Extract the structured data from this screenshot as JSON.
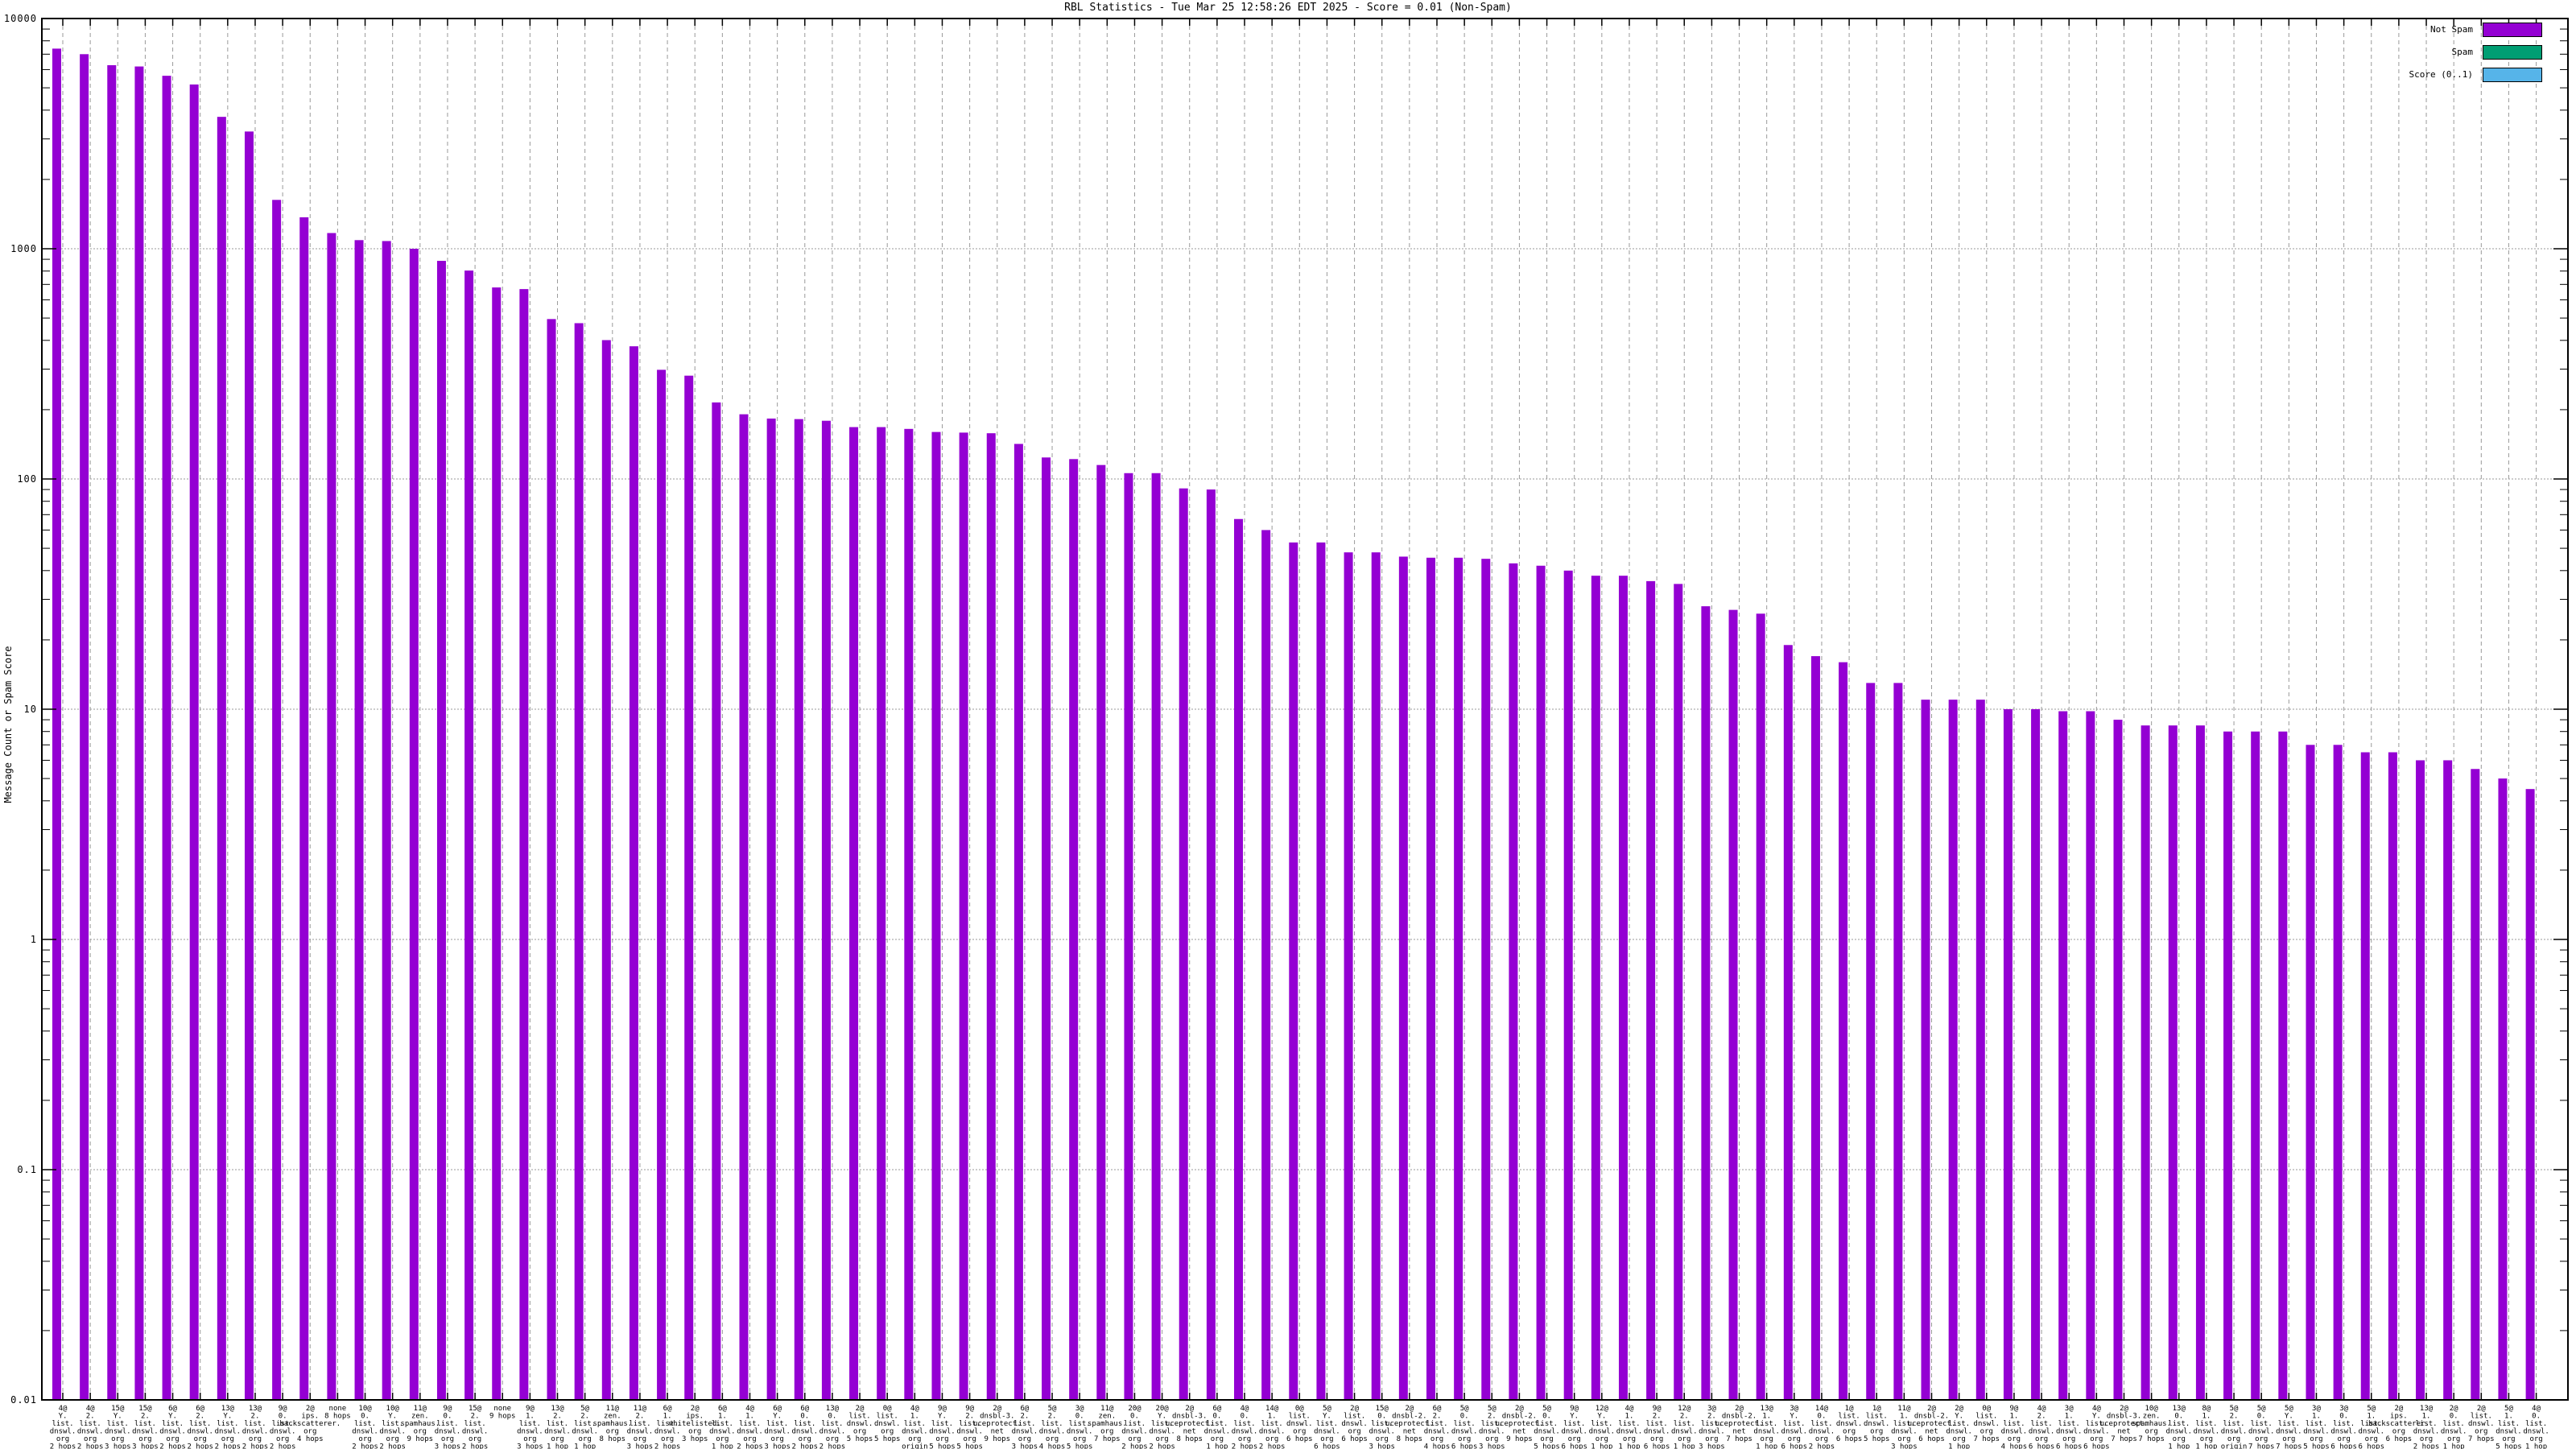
{
  "chart_data": {
    "type": "bar",
    "title": "RBL Statistics - Tue Mar 25 12:58:26 EDT 2025 - Score = 0.01 (Non-Spam)",
    "ylabel": "Message Count or Spam Score",
    "y_scale": "log10",
    "ylim": [
      0.01,
      10000
    ],
    "yticks": [
      "10000",
      "1000",
      "100",
      "10",
      "1",
      "0.1",
      "0.01"
    ],
    "grid": "major-dotted-horizontal, dashed-vertical-per-bar",
    "legend_position": "top-right-inside",
    "legend": [
      {
        "label": "Not Spam",
        "color": "#9400d3"
      },
      {
        "label": "Spam",
        "color": "#009e73"
      },
      {
        "label": "Score (0..1)",
        "color": "#56b4e9"
      }
    ],
    "series_shown": "Not Spam",
    "bar_color": "#9400d3",
    "bars": [
      {
        "v": 7400,
        "l": [
          "4@",
          "Y.",
          "list.",
          "dnswl.",
          "org",
          "2 hops"
        ]
      },
      {
        "v": 7000,
        "l": [
          "4@",
          "2.",
          "list.",
          "dnswl.",
          "org",
          "2 hops"
        ]
      },
      {
        "v": 6270,
        "l": [
          "15@",
          "Y.",
          "list.",
          "dnswl.",
          "org",
          "3 hops"
        ]
      },
      {
        "v": 6190,
        "l": [
          "15@",
          "2.",
          "list.",
          "dnswl.",
          "org",
          "3 hops"
        ]
      },
      {
        "v": 5640,
        "l": [
          "6@",
          "Y.",
          "list.",
          "dnswl.",
          "org",
          "2 hops"
        ]
      },
      {
        "v": 5170,
        "l": [
          "6@",
          "2.",
          "list.",
          "dnswl.",
          "org",
          "2 hops"
        ]
      },
      {
        "v": 3740,
        "l": [
          "13@",
          "Y.",
          "list.",
          "dnswl.",
          "org",
          "2 hops"
        ]
      },
      {
        "v": 3230,
        "l": [
          "13@",
          "2.",
          "list.",
          "dnswl.",
          "org",
          "2 hops"
        ]
      },
      {
        "v": 1630,
        "l": [
          "9@",
          "0.",
          "list.",
          "dnswl.",
          "org",
          "2 hops"
        ]
      },
      {
        "v": 1370,
        "l": [
          "2@",
          "ips.",
          "backscatterer.",
          "org",
          "4 hops"
        ]
      },
      {
        "v": 1170,
        "l": [
          "none",
          "8 hops"
        ]
      },
      {
        "v": 1090,
        "l": [
          "10@",
          "0.",
          "list.",
          "dnswl.",
          "org",
          "2 hops"
        ]
      },
      {
        "v": 1080,
        "l": [
          "10@",
          "Y.",
          "list.",
          "dnswl.",
          "org",
          "2 hops"
        ]
      },
      {
        "v": 1000,
        "l": [
          "11@",
          "zen.",
          "spamhaus.",
          "org",
          "9 hops"
        ]
      },
      {
        "v": 886,
        "l": [
          "9@",
          "0.",
          "list.",
          "dnswl.",
          "org",
          "3 hops"
        ]
      },
      {
        "v": 804,
        "l": [
          "15@",
          "2.",
          "list.",
          "dnswl.",
          "org",
          "2 hops"
        ]
      },
      {
        "v": 679,
        "l": [
          "none",
          "9 hops"
        ]
      },
      {
        "v": 668,
        "l": [
          "9@",
          "1.",
          "list.",
          "dnswl.",
          "org",
          "3 hops"
        ]
      },
      {
        "v": 495,
        "l": [
          "13@",
          "2.",
          "list.",
          "dnswl.",
          "org",
          "1 hop"
        ]
      },
      {
        "v": 475,
        "l": [
          "5@",
          "2.",
          "list.",
          "dnswl.",
          "org",
          "1 hop"
        ]
      },
      {
        "v": 401,
        "l": [
          "11@",
          "zen.",
          "spamhaus.",
          "org",
          "8 hops"
        ]
      },
      {
        "v": 377,
        "l": [
          "11@",
          "2.",
          "list.",
          "dnswl.",
          "org",
          "3 hops"
        ]
      },
      {
        "v": 298,
        "l": [
          "6@",
          "1.",
          "list.",
          "dnswl.",
          "org",
          "2 hops"
        ]
      },
      {
        "v": 281,
        "l": [
          "2@",
          "ips.",
          "whitelisted.",
          "org",
          "3 hops"
        ]
      },
      {
        "v": 215,
        "l": [
          "6@",
          "1.",
          "list.",
          "dnswl.",
          "org",
          "1 hop"
        ]
      },
      {
        "v": 191,
        "l": [
          "4@",
          "1.",
          "list.",
          "dnswl.",
          "org",
          "2 hops"
        ]
      },
      {
        "v": 183,
        "l": [
          "6@",
          "Y.",
          "list.",
          "dnswl.",
          "org",
          "3 hops"
        ]
      },
      {
        "v": 182,
        "l": [
          "6@",
          "0.",
          "list.",
          "dnswl.",
          "org",
          "2 hops"
        ]
      },
      {
        "v": 179,
        "l": [
          "13@",
          "0.",
          "list.",
          "dnswl.",
          "org",
          "2 hops"
        ]
      },
      {
        "v": 168,
        "l": [
          "2@",
          "list.",
          "dnswl.",
          "org",
          "5 hops"
        ]
      },
      {
        "v": 168,
        "l": [
          "0@",
          "list.",
          "dnswl.",
          "org",
          "5 hops"
        ]
      },
      {
        "v": 165,
        "l": [
          "4@",
          "1.",
          "list.",
          "dnswl.",
          "org",
          "origin"
        ]
      },
      {
        "v": 160,
        "l": [
          "9@",
          "Y.",
          "list.",
          "dnswl.",
          "org",
          "5 hops"
        ]
      },
      {
        "v": 159,
        "l": [
          "9@",
          "2.",
          "list.",
          "dnswl.",
          "org",
          "5 hops"
        ]
      },
      {
        "v": 158,
        "l": [
          "2@",
          "dnsbl-3.",
          "uceprotect.",
          "net",
          "9 hops"
        ]
      },
      {
        "v": 142,
        "l": [
          "6@",
          "2.",
          "list.",
          "dnswl.",
          "org",
          "3 hops"
        ]
      },
      {
        "v": 124,
        "l": [
          "5@",
          "2.",
          "list.",
          "dnswl.",
          "org",
          "4 hops"
        ]
      },
      {
        "v": 122,
        "l": [
          "3@",
          "0.",
          "list.",
          "dnswl.",
          "org",
          "5 hops"
        ]
      },
      {
        "v": 115,
        "l": [
          "11@",
          "zen.",
          "spamhaus.",
          "org",
          "7 hops"
        ]
      },
      {
        "v": 106,
        "l": [
          "20@",
          "0.",
          "list.",
          "dnswl.",
          "org",
          "2 hops"
        ]
      },
      {
        "v": 106,
        "l": [
          "20@",
          "Y.",
          "list.",
          "dnswl.",
          "org",
          "2 hops"
        ]
      },
      {
        "v": 91,
        "l": [
          "2@",
          "dnsbl-3.",
          "uceprotect.",
          "net",
          "8 hops"
        ]
      },
      {
        "v": 90,
        "l": [
          "6@",
          "0.",
          "list.",
          "dnswl.",
          "org",
          "1 hop"
        ]
      },
      {
        "v": 67,
        "l": [
          "4@",
          "0.",
          "list.",
          "dnswl.",
          "org",
          "2 hops"
        ]
      },
      {
        "v": 60,
        "l": [
          "14@",
          "1.",
          "list.",
          "dnswl.",
          "org",
          "2 hops"
        ]
      },
      {
        "v": 53,
        "l": [
          "0@",
          "list.",
          "dnswl.",
          "org",
          "6 hops"
        ]
      },
      {
        "v": 53,
        "l": [
          "5@",
          "Y.",
          "list.",
          "dnswl.",
          "org",
          "6 hops"
        ]
      },
      {
        "v": 48,
        "l": [
          "2@",
          "list.",
          "dnswl.",
          "org",
          "6 hops"
        ]
      },
      {
        "v": 48,
        "l": [
          "15@",
          "0.",
          "list.",
          "dnswl.",
          "org",
          "3 hops"
        ]
      },
      {
        "v": 46,
        "l": [
          "2@",
          "dnsbl-2.",
          "uceprotect.",
          "net",
          "8 hops"
        ]
      },
      {
        "v": 45.5,
        "l": [
          "6@",
          "2.",
          "list.",
          "dnswl.",
          "org",
          "4 hops"
        ]
      },
      {
        "v": 45.5,
        "l": [
          "5@",
          "0.",
          "list.",
          "dnswl.",
          "org",
          "6 hops"
        ]
      },
      {
        "v": 45,
        "l": [
          "5@",
          "2.",
          "list.",
          "dnswl.",
          "org",
          "3 hops"
        ]
      },
      {
        "v": 43,
        "l": [
          "2@",
          "dnsbl-2.",
          "uceprotect.",
          "net",
          "9 hops"
        ]
      },
      {
        "v": 42,
        "l": [
          "5@",
          "0.",
          "list.",
          "dnswl.",
          "org",
          "5 hops"
        ]
      },
      {
        "v": 40,
        "l": [
          "9@",
          "Y.",
          "list.",
          "dnswl.",
          "org",
          "6 hops"
        ]
      },
      {
        "v": 38,
        "l": [
          "12@",
          "Y.",
          "list.",
          "dnswl.",
          "org",
          "1 hop"
        ]
      },
      {
        "v": 38,
        "l": [
          "4@",
          "1.",
          "list.",
          "dnswl.",
          "org",
          "1 hop"
        ]
      },
      {
        "v": 36,
        "l": [
          "9@",
          "2.",
          "list.",
          "dnswl.",
          "org",
          "6 hops"
        ]
      },
      {
        "v": 35,
        "l": [
          "12@",
          "2.",
          "list.",
          "dnswl.",
          "org",
          "1 hop"
        ]
      },
      {
        "v": 28,
        "l": [
          "3@",
          "2.",
          "list.",
          "dnswl.",
          "org",
          "3 hops"
        ]
      },
      {
        "v": 27,
        "l": [
          "2@",
          "dnsbl-2.",
          "uceprotect.",
          "net",
          "7 hops"
        ]
      },
      {
        "v": 26,
        "l": [
          "13@",
          "1.",
          "list.",
          "dnswl.",
          "org",
          "1 hop"
        ]
      },
      {
        "v": 19,
        "l": [
          "3@",
          "Y.",
          "list.",
          "dnswl.",
          "org",
          "6 hops"
        ]
      },
      {
        "v": 17,
        "l": [
          "14@",
          "0.",
          "list.",
          "dnswl.",
          "org",
          "2 hops"
        ]
      },
      {
        "v": 16,
        "l": [
          "1@",
          "list.",
          "dnswl.",
          "org",
          "6 hops"
        ]
      },
      {
        "v": 13,
        "l": [
          "1@",
          "list.",
          "dnswl.",
          "org",
          "5 hops"
        ]
      },
      {
        "v": 13,
        "l": [
          "11@",
          "1.",
          "list.",
          "dnswl.",
          "org",
          "3 hops"
        ]
      },
      {
        "v": 11,
        "l": [
          "2@",
          "dnsbl-2.",
          "uceprotect.",
          "net",
          "6 hops"
        ]
      },
      {
        "v": 11,
        "l": [
          "2@",
          "Y.",
          "list.",
          "dnswl.",
          "org",
          "1 hop"
        ]
      },
      {
        "v": 11,
        "l": [
          "0@",
          "list.",
          "dnswl.",
          "org",
          "7 hops"
        ]
      },
      {
        "v": 10,
        "l": [
          "9@",
          "1.",
          "list.",
          "dnswl.",
          "org",
          "4 hops"
        ]
      },
      {
        "v": 10,
        "l": [
          "4@",
          "2.",
          "list.",
          "dnswl.",
          "org",
          "6 hops"
        ]
      },
      {
        "v": 9.8,
        "l": [
          "3@",
          "1.",
          "list.",
          "dnswl.",
          "org",
          "6 hops"
        ]
      },
      {
        "v": 9.8,
        "l": [
          "4@",
          "Y.",
          "list.",
          "dnswl.",
          "org",
          "6 hops"
        ]
      },
      {
        "v": 9,
        "l": [
          "2@",
          "dnsbl-3.",
          "uceprotect.",
          "net",
          "7 hops"
        ]
      },
      {
        "v": 8.5,
        "l": [
          "10@",
          "zen.",
          "spamhaus.",
          "org",
          "7 hops"
        ]
      },
      {
        "v": 8.5,
        "l": [
          "13@",
          "0.",
          "list.",
          "dnswl.",
          "org",
          "1 hop"
        ]
      },
      {
        "v": 8.5,
        "l": [
          "8@",
          "1.",
          "list.",
          "dnswl.",
          "org",
          "1 hop"
        ]
      },
      {
        "v": 8,
        "l": [
          "5@",
          "2.",
          "list.",
          "dnswl.",
          "org",
          "origin"
        ]
      },
      {
        "v": 8,
        "l": [
          "5@",
          "0.",
          "list.",
          "dnswl.",
          "org",
          "7 hops"
        ]
      },
      {
        "v": 8,
        "l": [
          "5@",
          "Y.",
          "list.",
          "dnswl.",
          "org",
          "7 hops"
        ]
      },
      {
        "v": 7,
        "l": [
          "3@",
          "1.",
          "list.",
          "dnswl.",
          "org",
          "5 hops"
        ]
      },
      {
        "v": 7,
        "l": [
          "3@",
          "0.",
          "list.",
          "dnswl.",
          "org",
          "6 hops"
        ]
      },
      {
        "v": 6.5,
        "l": [
          "5@",
          "1.",
          "list.",
          "dnswl.",
          "org",
          "6 hops"
        ]
      },
      {
        "v": 6.5,
        "l": [
          "2@",
          "ips.",
          "backscatterer.",
          "org",
          "6 hops"
        ]
      },
      {
        "v": 6,
        "l": [
          "13@",
          "1.",
          "list.",
          "dnswl.",
          "org",
          "2 hops"
        ]
      },
      {
        "v": 6,
        "l": [
          "2@",
          "0.",
          "list.",
          "dnswl.",
          "org",
          "1 hop"
        ]
      },
      {
        "v": 5.5,
        "l": [
          "2@",
          "list.",
          "dnswl.",
          "org",
          "7 hops"
        ]
      },
      {
        "v": 5,
        "l": [
          "5@",
          "1.",
          "list.",
          "dnswl.",
          "org",
          "5 hops"
        ]
      },
      {
        "v": 4.5,
        "l": [
          "4@",
          "0.",
          "list.",
          "dnswl.",
          "org",
          "1 hop"
        ]
      }
    ]
  }
}
